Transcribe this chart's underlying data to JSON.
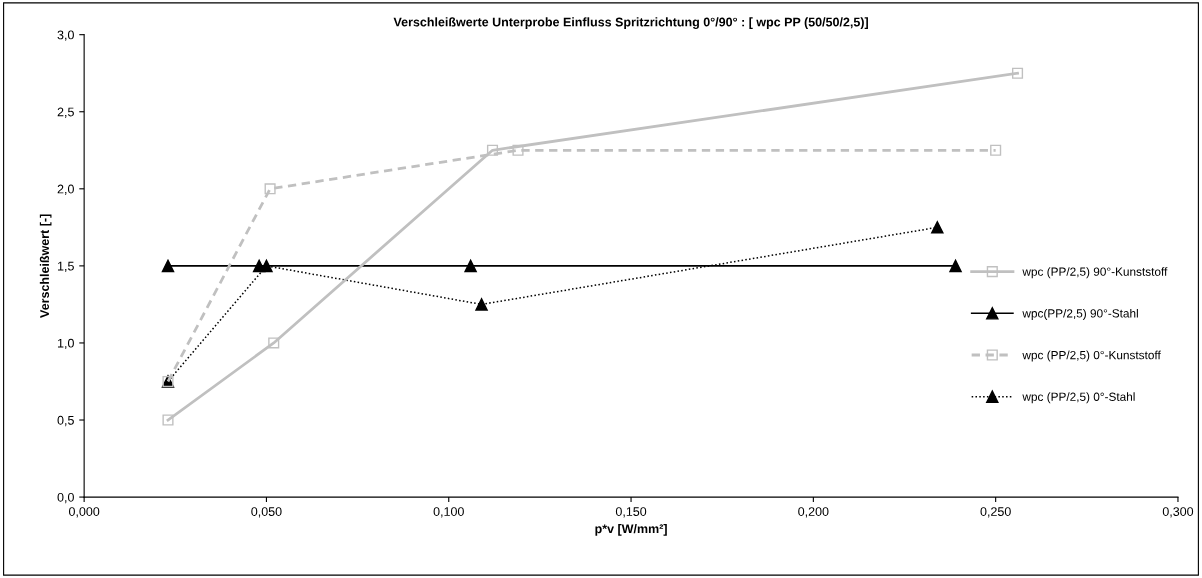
{
  "chart_data": {
    "type": "line",
    "title": "Verschleißwerte Unterprobe Einfluss Spritzrichtung 0°/90° : [ wpc PP (50/50/2,5)]",
    "xlabel": "p*v [W/mm²]",
    "ylabel": "Verschleißwert [-]",
    "xlim": [
      0,
      0.3
    ],
    "ylim": [
      0,
      3
    ],
    "xticks": [
      {
        "value": 0,
        "label": "0,000"
      },
      {
        "value": 0.05,
        "label": "0,050"
      },
      {
        "value": 0.1,
        "label": "0,100"
      },
      {
        "value": 0.15,
        "label": "0,150"
      },
      {
        "value": 0.2,
        "label": "0,200"
      },
      {
        "value": 0.25,
        "label": "0,250"
      },
      {
        "value": 0.3,
        "label": "0,300"
      }
    ],
    "yticks": [
      {
        "value": 0,
        "label": "0,0"
      },
      {
        "value": 0.5,
        "label": "0,5"
      },
      {
        "value": 1,
        "label": "1,0"
      },
      {
        "value": 1.5,
        "label": "1,5"
      },
      {
        "value": 2,
        "label": "2,0"
      },
      {
        "value": 2.5,
        "label": "2,5"
      },
      {
        "value": 3,
        "label": "3,0"
      }
    ],
    "grid": false,
    "legend": "right",
    "series": [
      {
        "name": "wpc (PP/2,5) 90°-Kunststoff",
        "color": "#c0c0c0",
        "marker": "square",
        "line_style": "solid",
        "x": [
          0.023,
          0.052,
          0.112,
          0.256
        ],
        "values": [
          0.5,
          1.0,
          2.25,
          2.75
        ]
      },
      {
        "name": "wpc(PP/2,5) 90°-Stahl",
        "color": "#000000",
        "marker": "triangle",
        "line_style": "solid",
        "x": [
          0.023,
          0.048,
          0.106,
          0.239
        ],
        "values": [
          1.5,
          1.5,
          1.5,
          1.5
        ]
      },
      {
        "name": "wpc (PP/2,5) 0°-Kunststoff",
        "color": "#c0c0c0",
        "marker": "square",
        "line_style": "dashed",
        "x": [
          0.023,
          0.051,
          0.119,
          0.25
        ],
        "values": [
          0.75,
          2.0,
          2.25,
          2.25
        ]
      },
      {
        "name": "wpc (PP/2,5) 0°-Stahl",
        "color": "#000000",
        "marker": "triangle",
        "line_style": "dotted",
        "x": [
          0.023,
          0.05,
          0.109,
          0.234
        ],
        "values": [
          0.75,
          1.5,
          1.25,
          1.75
        ]
      }
    ]
  }
}
